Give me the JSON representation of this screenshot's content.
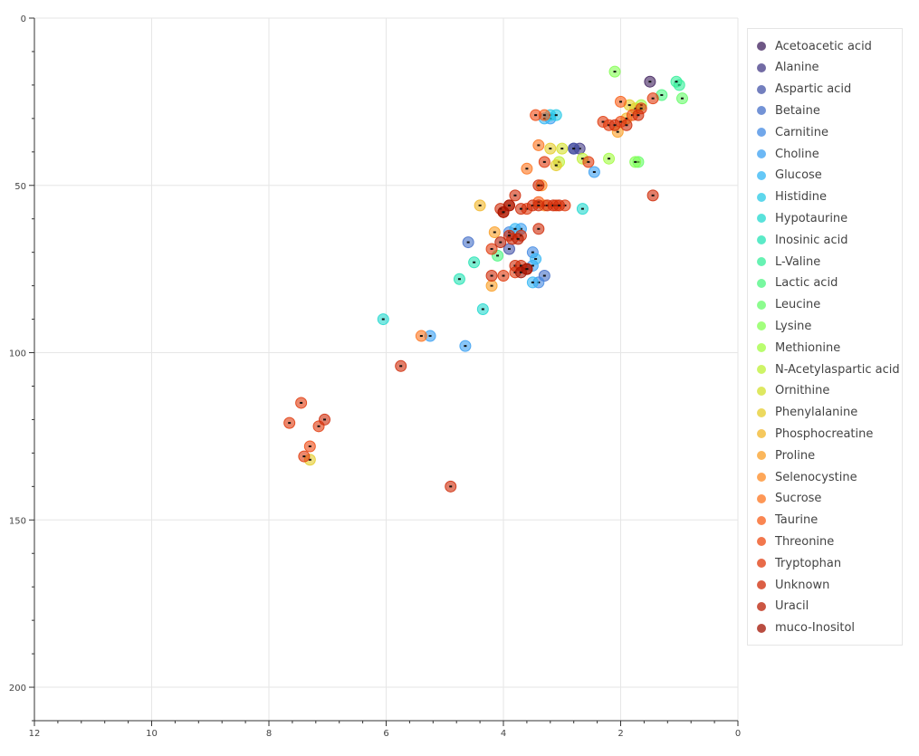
{
  "chart_data": {
    "type": "scatter",
    "title": "",
    "xlabel": "",
    "ylabel": "",
    "xlim": [
      12,
      0
    ],
    "ylim": [
      0,
      210
    ],
    "x_ticks": [
      12,
      10,
      8,
      6,
      4,
      2,
      0
    ],
    "y_ticks": [
      0,
      50,
      100,
      150,
      200
    ],
    "grid": true,
    "legend_position": "right",
    "series": [
      {
        "name": "Acetoacetic acid",
        "color": "#3e1f5c",
        "points": [
          [
            1.5,
            19
          ]
        ]
      },
      {
        "name": "Alanine",
        "color": "#433a86",
        "points": [
          [
            2.8,
            39
          ],
          [
            2.7,
            39
          ]
        ]
      },
      {
        "name": "Aspartic acid",
        "color": "#4454a8",
        "points": [
          [
            3.9,
            69
          ],
          [
            2.8,
            39
          ]
        ]
      },
      {
        "name": "Betaine",
        "color": "#446fc8",
        "points": [
          [
            4.6,
            67
          ],
          [
            3.3,
            77
          ]
        ]
      },
      {
        "name": "Carnitine",
        "color": "#4289e3",
        "points": [
          [
            3.9,
            64
          ],
          [
            3.5,
            70
          ],
          [
            3.4,
            79
          ]
        ]
      },
      {
        "name": "Choline",
        "color": "#3ba0f2",
        "points": [
          [
            3.7,
            63
          ],
          [
            3.5,
            74
          ],
          [
            3.2,
            30
          ],
          [
            4.65,
            98
          ],
          [
            5.25,
            95
          ],
          [
            2.45,
            46
          ]
        ]
      },
      {
        "name": "Glucose",
        "color": "#32b6f4",
        "points": [
          [
            3.8,
            63
          ],
          [
            3.5,
            79
          ],
          [
            3.3,
            30
          ],
          [
            3.45,
            72
          ]
        ]
      },
      {
        "name": "Histidine",
        "color": "#28c9e6",
        "points": [
          [
            3.2,
            29
          ],
          [
            3.1,
            29
          ]
        ]
      },
      {
        "name": "Hypotaurine",
        "color": "#21d8cf",
        "points": [
          [
            6.05,
            90
          ],
          [
            2.65,
            57
          ],
          [
            4.35,
            87
          ]
        ]
      },
      {
        "name": "Inosinic acid",
        "color": "#24e3b4",
        "points": [
          [
            4.75,
            78
          ],
          [
            4.5,
            73
          ]
        ]
      },
      {
        "name": "L-Valine",
        "color": "#34ee99",
        "points": [
          [
            1.0,
            20
          ],
          [
            1.05,
            19
          ]
        ]
      },
      {
        "name": "Lactic acid",
        "color": "#4bf680",
        "points": [
          [
            4.1,
            71
          ],
          [
            1.3,
            23
          ]
        ]
      },
      {
        "name": "Leucine",
        "color": "#66fb68",
        "points": [
          [
            1.7,
            43
          ],
          [
            0.95,
            24
          ]
        ]
      },
      {
        "name": "Lysine",
        "color": "#83ff51",
        "points": [
          [
            1.75,
            43
          ],
          [
            2.1,
            16
          ]
        ]
      },
      {
        "name": "Methionine",
        "color": "#a2fc3f",
        "points": [
          [
            2.2,
            42
          ],
          [
            1.65,
            26
          ]
        ]
      },
      {
        "name": "N-Acetylaspartic acid",
        "color": "#bef034",
        "points": [
          [
            2.65,
            42
          ],
          [
            3.05,
            43
          ]
        ]
      },
      {
        "name": "Ornithine",
        "color": "#d3e02c",
        "points": [
          [
            3.0,
            39
          ],
          [
            1.75,
            27
          ]
        ]
      },
      {
        "name": "Phenylalanine",
        "color": "#e5cc2a",
        "points": [
          [
            3.2,
            39
          ],
          [
            3.1,
            44
          ],
          [
            1.85,
            26
          ],
          [
            7.3,
            132
          ]
        ]
      },
      {
        "name": "Phosphocreatine",
        "color": "#f1b527",
        "points": [
          [
            4.4,
            56
          ],
          [
            1.9,
            30
          ]
        ]
      },
      {
        "name": "Proline",
        "color": "#fa9f25",
        "points": [
          [
            4.2,
            80
          ],
          [
            4.15,
            64
          ],
          [
            2.05,
            34
          ]
        ]
      },
      {
        "name": "Selenocystine",
        "color": "#fe8a22",
        "points": [
          [
            3.35,
            50
          ],
          [
            3.3,
            56
          ]
        ]
      },
      {
        "name": "Sucrose",
        "color": "#fd741e",
        "points": [
          [
            3.6,
            45
          ],
          [
            3.4,
            38
          ],
          [
            5.4,
            95
          ]
        ]
      },
      {
        "name": "Taurine",
        "color": "#f85e18",
        "points": [
          [
            3.4,
            55
          ],
          [
            3.3,
            29
          ],
          [
            2.0,
            25
          ]
        ]
      },
      {
        "name": "Threonine",
        "color": "#ee4a12",
        "points": [
          [
            3.45,
            29
          ],
          [
            1.8,
            29
          ],
          [
            2.0,
            31
          ],
          [
            7.3,
            128
          ],
          [
            3.1,
            56
          ]
        ]
      },
      {
        "name": "Tryptophan",
        "color": "#e0390c",
        "points": [
          [
            4.0,
            58
          ],
          [
            3.9,
            56
          ],
          [
            3.6,
            57
          ],
          [
            4.2,
            69
          ],
          [
            3.8,
            76
          ],
          [
            7.45,
            115
          ],
          [
            7.65,
            121
          ],
          [
            7.15,
            122
          ],
          [
            7.4,
            131
          ],
          [
            3.3,
            43
          ],
          [
            2.55,
            43
          ],
          [
            2.3,
            31
          ],
          [
            2.2,
            32
          ],
          [
            1.45,
            24
          ],
          [
            1.65,
            27
          ],
          [
            2.95,
            56
          ],
          [
            4.0,
            77
          ]
        ]
      },
      {
        "name": "Unknown",
        "color": "#cf2a07",
        "points": [
          [
            3.8,
            53
          ],
          [
            3.7,
            57
          ],
          [
            3.5,
            56
          ],
          [
            3.4,
            56
          ],
          [
            3.25,
            56
          ],
          [
            3.15,
            56
          ],
          [
            3.05,
            56
          ],
          [
            3.85,
            66
          ],
          [
            3.9,
            65
          ],
          [
            3.7,
            65
          ],
          [
            3.6,
            75
          ],
          [
            3.8,
            74
          ],
          [
            4.2,
            77
          ],
          [
            4.05,
            57
          ],
          [
            3.7,
            74
          ],
          [
            3.4,
            50
          ],
          [
            3.4,
            63
          ],
          [
            2.1,
            32
          ],
          [
            1.45,
            53
          ],
          [
            1.9,
            32
          ],
          [
            1.7,
            29
          ],
          [
            7.05,
            120
          ],
          [
            4.9,
            140
          ],
          [
            5.75,
            104
          ]
        ]
      },
      {
        "name": "Uracil",
        "color": "#ba1d04",
        "points": [
          [
            4.05,
            67
          ],
          [
            3.75,
            66
          ]
        ]
      },
      {
        "name": "muco-Inositol",
        "color": "#a21201",
        "points": [
          [
            3.9,
            56
          ],
          [
            4.0,
            58
          ],
          [
            3.7,
            76
          ],
          [
            3.6,
            75
          ]
        ]
      }
    ]
  }
}
